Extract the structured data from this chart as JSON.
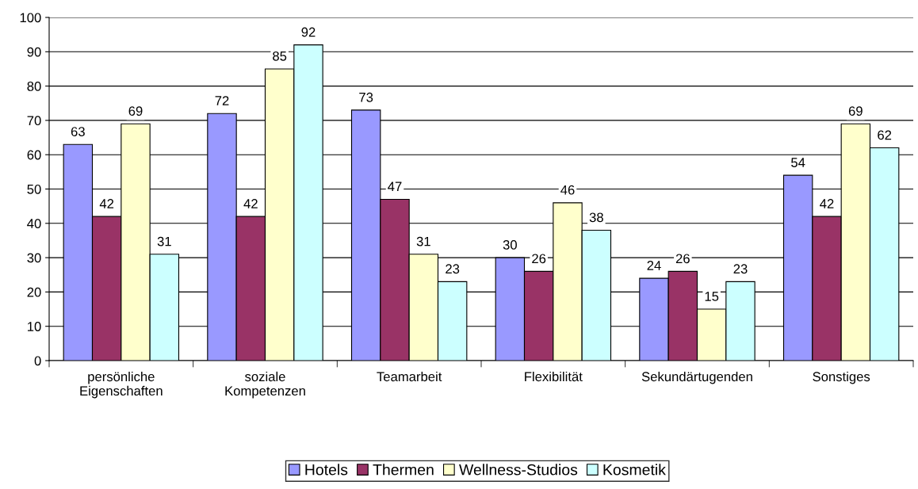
{
  "chart_data": {
    "type": "bar",
    "categories": [
      "persönliche\nEigenschaften",
      "soziale\nKompetenzen",
      "Teamarbeit",
      "Flexibilität",
      "Sekundärtugenden",
      "Sonstiges"
    ],
    "series": [
      {
        "name": "Hotels",
        "color": "#9999ff",
        "values": [
          63,
          72,
          73,
          30,
          24,
          54
        ]
      },
      {
        "name": "Thermen",
        "color": "#993366",
        "values": [
          42,
          42,
          47,
          26,
          26,
          42
        ]
      },
      {
        "name": "Wellness-Studios",
        "color": "#ffffcc",
        "values": [
          69,
          85,
          31,
          46,
          15,
          69
        ]
      },
      {
        "name": "Kosmetik",
        "color": "#ccffff",
        "values": [
          31,
          92,
          23,
          38,
          23,
          62
        ]
      }
    ],
    "ylim": [
      0,
      100
    ],
    "yticks": [
      0,
      10,
      20,
      30,
      40,
      50,
      60,
      70,
      80,
      90,
      100
    ],
    "grid": "y",
    "legend": "bottom",
    "data_labels": true
  }
}
